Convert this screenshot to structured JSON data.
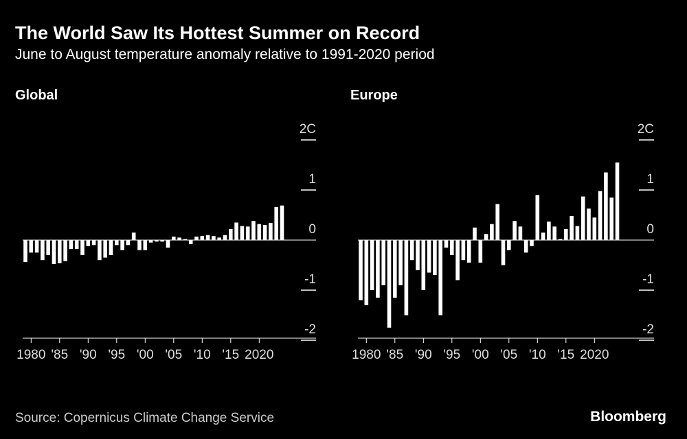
{
  "title": "The World Saw Its Hottest Summer on Record",
  "subtitle": "June to August temperature anomaly relative to 1991-2020 period",
  "source": "Source: Copernicus Climate Change Service",
  "brand": "Bloomberg",
  "chart_data": [
    {
      "type": "bar",
      "title": "Global",
      "color": "#ffffff",
      "categories": [
        1979,
        1980,
        1981,
        1982,
        1983,
        1984,
        1985,
        1986,
        1987,
        1988,
        1989,
        1990,
        1991,
        1992,
        1993,
        1994,
        1995,
        1996,
        1997,
        1998,
        1999,
        2000,
        2001,
        2002,
        2003,
        2004,
        2005,
        2006,
        2007,
        2008,
        2009,
        2010,
        2011,
        2012,
        2013,
        2014,
        2015,
        2016,
        2017,
        2018,
        2019,
        2020,
        2021,
        2022,
        2023,
        2024
      ],
      "values": [
        -0.44,
        -0.25,
        -0.25,
        -0.4,
        -0.3,
        -0.48,
        -0.46,
        -0.42,
        -0.18,
        -0.18,
        -0.3,
        -0.12,
        -0.1,
        -0.4,
        -0.35,
        -0.3,
        -0.1,
        -0.2,
        -0.1,
        0.15,
        -0.2,
        -0.2,
        -0.05,
        -0.03,
        -0.03,
        -0.15,
        0.07,
        0.05,
        0.02,
        -0.08,
        0.07,
        0.08,
        0.1,
        0.08,
        0.05,
        0.1,
        0.22,
        0.35,
        0.28,
        0.27,
        0.38,
        0.32,
        0.3,
        0.34,
        0.66,
        0.69
      ],
      "ylim": [
        -2,
        2
      ],
      "yticks": [
        -2,
        -1,
        0,
        1,
        {
          "value": 2,
          "label": "2C"
        }
      ],
      "xticks": [
        {
          "value": 1980,
          "label": "1980"
        },
        {
          "value": 1985,
          "label": "'85"
        },
        {
          "value": 1990,
          "label": "'90"
        },
        {
          "value": 1995,
          "label": "'95"
        },
        {
          "value": 2000,
          "label": "'00"
        },
        {
          "value": 2005,
          "label": "'05"
        },
        {
          "value": 2010,
          "label": "'10"
        },
        {
          "value": 2015,
          "label": "'15"
        },
        {
          "value": 2020,
          "label": "2020"
        }
      ]
    },
    {
      "type": "bar",
      "title": "Europe",
      "color": "#ffffff",
      "categories": [
        1979,
        1980,
        1981,
        1982,
        1983,
        1984,
        1985,
        1986,
        1987,
        1988,
        1989,
        1990,
        1991,
        1992,
        1993,
        1994,
        1995,
        1996,
        1997,
        1998,
        1999,
        2000,
        2001,
        2002,
        2003,
        2004,
        2005,
        2006,
        2007,
        2008,
        2009,
        2010,
        2011,
        2012,
        2013,
        2014,
        2015,
        2016,
        2017,
        2018,
        2019,
        2020,
        2021,
        2022,
        2023,
        2024
      ],
      "values": [
        -1.2,
        -1.3,
        -1.0,
        -1.15,
        -0.9,
        -1.75,
        -1.15,
        -0.9,
        -1.5,
        -0.4,
        -0.6,
        -1.0,
        -0.65,
        -0.7,
        -1.5,
        -0.15,
        -0.3,
        -0.8,
        -0.4,
        -0.45,
        0.25,
        -0.45,
        0.12,
        0.32,
        0.72,
        -0.5,
        -0.2,
        0.38,
        0.27,
        -0.25,
        -0.12,
        0.9,
        0.15,
        0.37,
        0.27,
        0.02,
        0.22,
        0.48,
        0.28,
        0.87,
        0.63,
        0.45,
        0.98,
        1.35,
        0.85,
        1.55
      ],
      "ylim": [
        -2,
        2
      ],
      "yticks": [
        -2,
        -1,
        0,
        1,
        {
          "value": 2,
          "label": "2C"
        }
      ],
      "xticks": [
        {
          "value": 1980,
          "label": "1980"
        },
        {
          "value": 1985,
          "label": "'85"
        },
        {
          "value": 1990,
          "label": "'90"
        },
        {
          "value": 1995,
          "label": "'95"
        },
        {
          "value": 2000,
          "label": "'00"
        },
        {
          "value": 2005,
          "label": "'05"
        },
        {
          "value": 2010,
          "label": "'10"
        },
        {
          "value": 2015,
          "label": "'15"
        },
        {
          "value": 2020,
          "label": "2020"
        }
      ]
    }
  ]
}
